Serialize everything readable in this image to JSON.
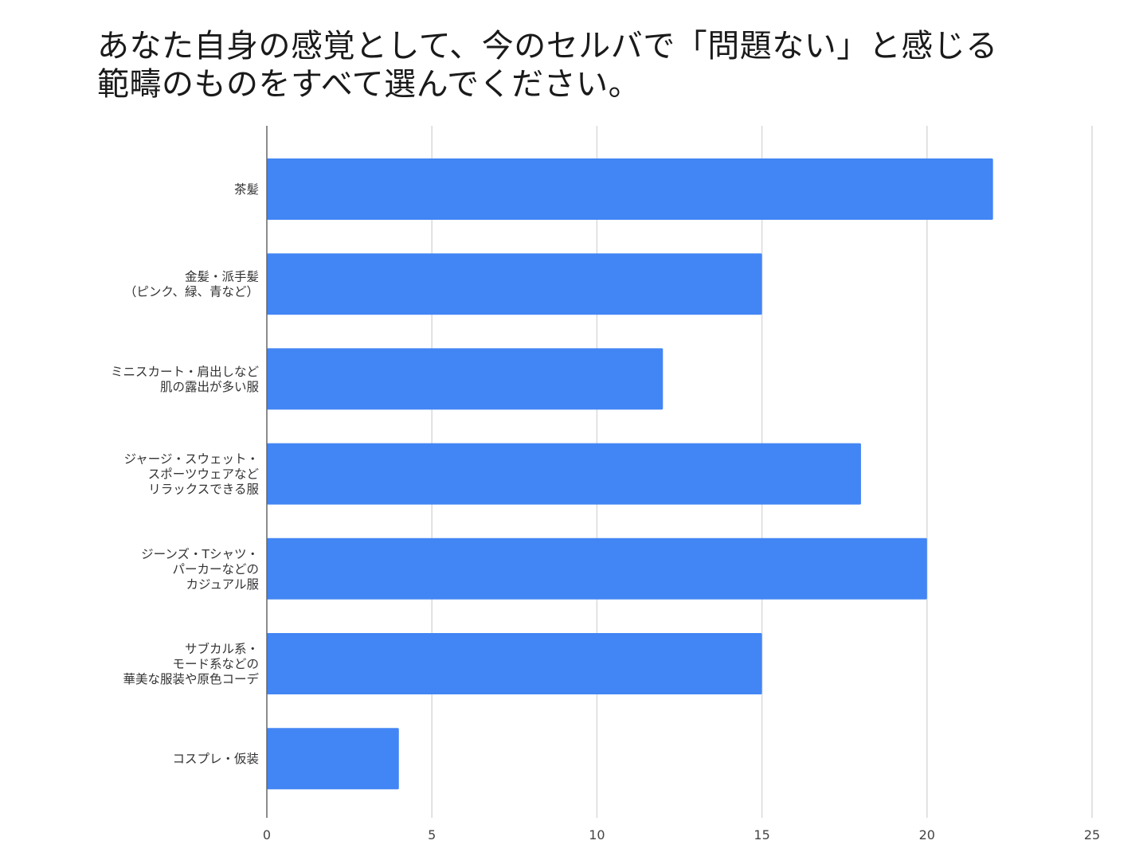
{
  "title_lines": [
    "あなた自身の感覚として、今のセルバで「問題ない」と感じる",
    "範疇のものをすべて選んでください。"
  ],
  "chart_data": {
    "type": "bar",
    "orientation": "horizontal",
    "title": "あなた自身の感覚として、今のセルバで「問題ない」と感じる範疇のものをすべて選んでください。",
    "categories": [
      [
        "茶髪"
      ],
      [
        "金髪・派手髪",
        "（ピンク、緑、青など）"
      ],
      [
        "ミニスカート・肩出しなど",
        "肌の露出が多い服"
      ],
      [
        "ジャージ・スウェット・",
        "スポーツウェアなど",
        "リラックスできる服"
      ],
      [
        "ジーンズ・Tシャツ・",
        "パーカーなどの",
        "カジュアル服"
      ],
      [
        "サブカル系・",
        "モード系などの",
        "華美な服装や原色コーデ"
      ],
      [
        "コスプレ・仮装"
      ]
    ],
    "values": [
      22,
      15,
      12,
      18,
      20,
      15,
      4
    ],
    "xlim": [
      0,
      25
    ],
    "xticks": [
      "0",
      "5",
      "10",
      "15",
      "20",
      "25"
    ],
    "xlabel": "",
    "ylabel": "",
    "grid": true,
    "bar_color": "#4285f4",
    "gridline_color": "#d9d9d9",
    "axis_color": "#666666"
  }
}
